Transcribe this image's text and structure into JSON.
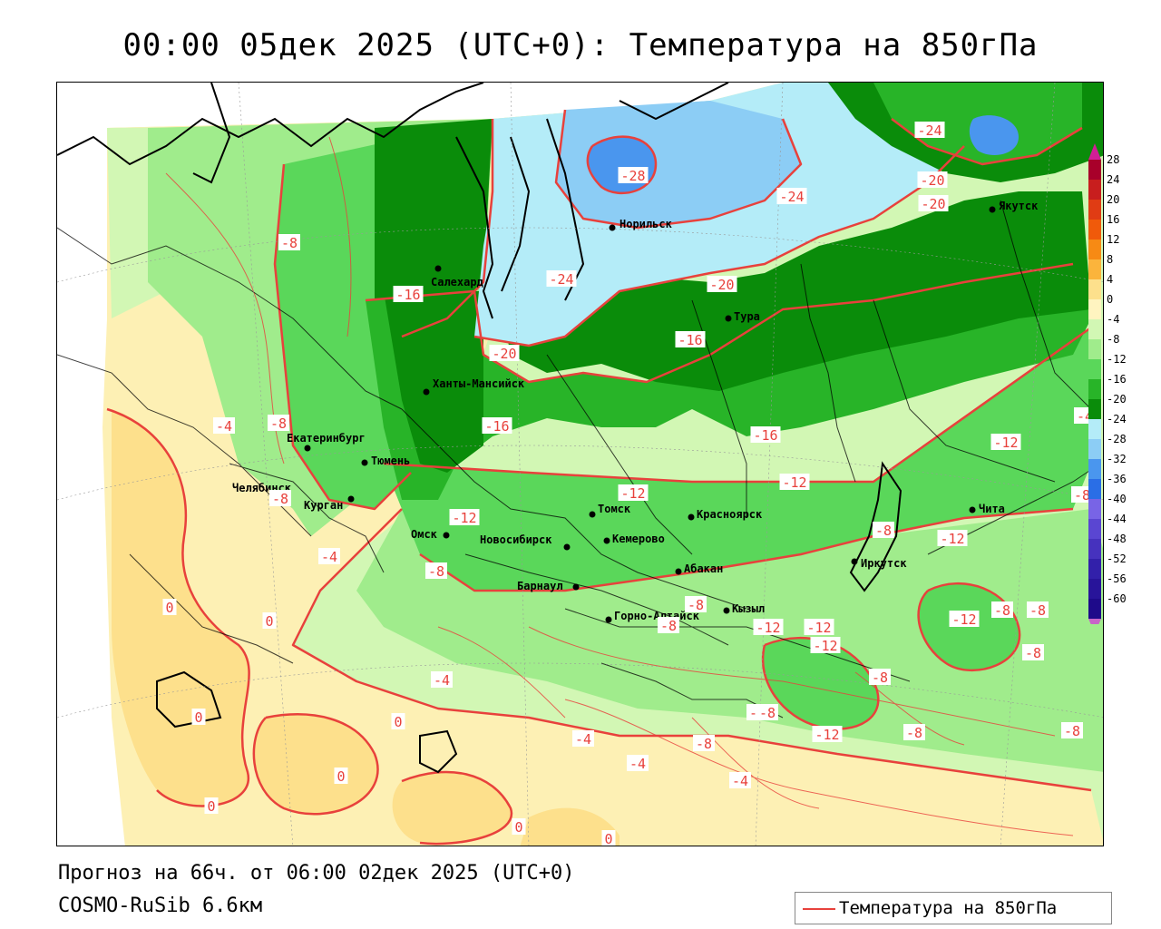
{
  "title": "00:00 05дек 2025 (UTC+0): Температура на 850гПа",
  "forecast_info": "Прогноз на 66ч. от 06:00 02дек 2025 (UTC+0)",
  "model_info": "COSMO-RuSib 6.6км",
  "legend": {
    "label": "Температура на 850гПа",
    "line_color": "#e8413c"
  },
  "colorbar": {
    "ticks": [
      "28",
      "24",
      "20",
      "16",
      "12",
      "8",
      "4",
      "0",
      "-4",
      "-8",
      "-12",
      "-16",
      "-20",
      "-24",
      "-28",
      "-32",
      "-36",
      "-40",
      "-44",
      "-48",
      "-52",
      "-56",
      "-60"
    ],
    "colors": [
      "#a8002a",
      "#c81e1e",
      "#e03c14",
      "#f05a0a",
      "#f78a14",
      "#fbb43c",
      "#fde08c",
      "#fff4c0",
      "#d2f7b4",
      "#a0ec8c",
      "#5ad75a",
      "#28b428",
      "#0a8c0a",
      "#b4ecf8",
      "#8ccdf5",
      "#4a96ee",
      "#2a6ee6",
      "#7864e6",
      "#5a46d2",
      "#4632be",
      "#3220aa",
      "#28149a",
      "#1e0a8a"
    ],
    "top_arrow_color": "#d21e96",
    "bottom_arrow_color": "#c864c8"
  },
  "cities": [
    {
      "name": "Салехард"
    },
    {
      "name": "Норильск"
    },
    {
      "name": "Якутск"
    },
    {
      "name": "Тура"
    },
    {
      "name": "Ханты-Мансийск"
    },
    {
      "name": "Екатеринбург"
    },
    {
      "name": "Тюмень"
    },
    {
      "name": "Челябинск"
    },
    {
      "name": "Курган"
    },
    {
      "name": "Омск"
    },
    {
      "name": "Новосибирск"
    },
    {
      "name": "Томск"
    },
    {
      "name": "Кемерово"
    },
    {
      "name": "Красноярск"
    },
    {
      "name": "Абакан"
    },
    {
      "name": "Барнаул"
    },
    {
      "name": "Горно-Алтайск"
    },
    {
      "name": "Кызыл"
    },
    {
      "name": "Иркутск"
    },
    {
      "name": "Чита"
    }
  ],
  "isotherm_labels": [
    "-28",
    "-24",
    "-24",
    "-24",
    "-20",
    "-20",
    "-20",
    "-20",
    "-16",
    "-16",
    "-16",
    "-16",
    "-12",
    "-12",
    "-12",
    "-12",
    "-12",
    "-12",
    "-12",
    "-12",
    "-12",
    "-8",
    "-8",
    "-8",
    "-8",
    "-8",
    "-8",
    "-8",
    "-8",
    "-8",
    "-8",
    "-8",
    "-8",
    "-8",
    "-8",
    "-8",
    "-8",
    "-4",
    "-4",
    "-4",
    "-4",
    "-4",
    "-4",
    "-4",
    "0",
    "0",
    "0",
    "0",
    "0",
    "0",
    "0",
    "0",
    "-12",
    "-8"
  ]
}
